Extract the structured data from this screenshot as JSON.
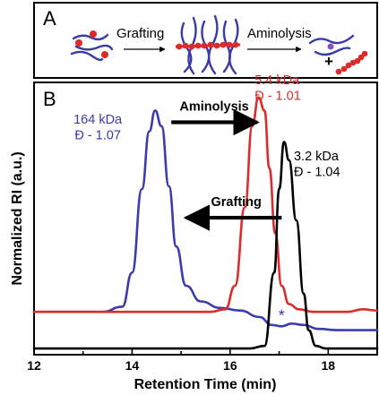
{
  "colors": {
    "blue": "#3b3bb0",
    "red": "#dd2b2b",
    "black": "#000000",
    "purple": "#8a4fc0"
  },
  "panel_a": {
    "letter": "A",
    "step1_label": "Grafting",
    "step2_label": "Aminolysis",
    "plus": "+"
  },
  "panel_b": {
    "letter": "B"
  },
  "chart_data": {
    "type": "line",
    "xlabel": "Retention Time (min)",
    "ylabel": "Normalized RI (a.u.)",
    "xlim": [
      12,
      19
    ],
    "ylim": [
      0,
      1
    ],
    "x_ticks": [
      12,
      14,
      16,
      18
    ],
    "x_minor_ticks": [
      13,
      15,
      17
    ],
    "grid": false,
    "series": [
      {
        "color": "#3b3bb0",
        "baseline": 0.05,
        "x": [
          12.0,
          13.4,
          13.8,
          14.0,
          14.2,
          14.35,
          14.47,
          14.6,
          14.75,
          14.9,
          15.1,
          15.4,
          15.8,
          16.2,
          16.6,
          16.85,
          17.05,
          17.25,
          17.5,
          17.8,
          18.2,
          18.6,
          19.0
        ],
        "y": [
          0.15,
          0.15,
          0.17,
          0.3,
          0.62,
          0.84,
          0.92,
          0.86,
          0.63,
          0.4,
          0.25,
          0.19,
          0.165,
          0.155,
          0.13,
          0.1,
          0.095,
          0.105,
          0.1,
          0.085,
          0.08,
          0.08,
          0.08
        ],
        "peak_label": "164 kDa",
        "dispersity_label": "Đ - 1.07"
      },
      {
        "color": "#dd2b2b",
        "x": [
          12.0,
          15.6,
          15.9,
          16.1,
          16.3,
          16.45,
          16.58,
          16.7,
          16.8,
          16.92,
          17.05,
          17.2,
          17.4,
          17.7,
          18.0,
          18.4,
          18.7,
          19.0
        ],
        "y": [
          0.15,
          0.15,
          0.16,
          0.25,
          0.55,
          0.86,
          0.97,
          0.92,
          0.7,
          0.45,
          0.25,
          0.18,
          0.16,
          0.15,
          0.15,
          0.15,
          0.16,
          0.155
        ],
        "peak_label": "5.4 kDa",
        "dispersity_label": "Đ - 1.01"
      },
      {
        "color": "#000000",
        "x": [
          12.0,
          16.4,
          16.7,
          16.9,
          17.0,
          17.1,
          17.2,
          17.35,
          17.5,
          17.6,
          17.75,
          17.95,
          18.3,
          19.0
        ],
        "y": [
          0.01,
          0.01,
          0.02,
          0.3,
          0.62,
          0.8,
          0.73,
          0.5,
          0.22,
          0.08,
          0.02,
          0.01,
          0.01,
          0.01
        ],
        "peak_label": "3.2 kDa",
        "dispersity_label": "Đ - 1.04"
      }
    ],
    "annotations": [
      {
        "text": "Aminolysis",
        "arrow": "right",
        "from_x": 14.8,
        "to_x": 16.55
      },
      {
        "text": "Grafting",
        "arrow": "left",
        "from_x": 17.05,
        "to_x": 15.1
      },
      {
        "text": "*",
        "color": "#3b3bb0",
        "at_x": 17.05
      }
    ]
  }
}
